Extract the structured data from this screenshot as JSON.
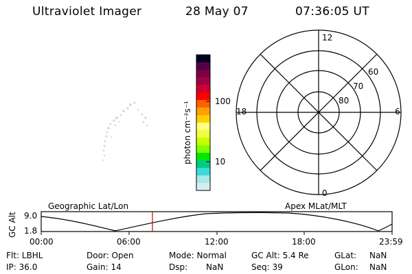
{
  "header": {
    "title": "Ultraviolet Imager",
    "date": "28 May 07",
    "time": "07:36:05 UT"
  },
  "colorbar": {
    "label": "photon cm⁻²s⁻¹",
    "tick_100": "100",
    "tick_10": "10",
    "colors": [
      "#000022",
      "#550044",
      "#7a0046",
      "#a00045",
      "#cc0033",
      "#ff0000",
      "#ff6000",
      "#ffa000",
      "#ffd000",
      "#ffff80",
      "#f0ff40",
      "#c8ff00",
      "#80ff00",
      "#00e800",
      "#00cc80",
      "#40d8d8",
      "#a8e8e8",
      "#d8eeee"
    ]
  },
  "polar_plot": {
    "mlt_top": "12",
    "mlt_left": "18",
    "mlt_right": "6",
    "mlt_bottom": "0",
    "lat_60": "60",
    "lat_70": "70",
    "lat_80": "80"
  },
  "altitude_panel": {
    "left_title": "Geographic Lat/Lon",
    "right_title": "Apex MLat/MLT",
    "ylabel": "GC Alt",
    "ytick_top": "9.0",
    "ytick_bottom": "1.8",
    "xticks": [
      "00:00",
      "06:00",
      "12:00",
      "18:00",
      "23:59"
    ],
    "current_time_color": "#cc0000"
  },
  "status": {
    "flt": "Flt: LBHL",
    "ip": "IP: 36.0",
    "door": "Door: Open",
    "gain": "Gain: 14",
    "mode": "Mode: Normal",
    "dsp": "Dsp:",
    "dsp_val": "NaN",
    "gc_alt": "GC Alt: 5.4 Re",
    "seq": "Seq: 39",
    "glat": "GLat:",
    "glat_val": "NaN",
    "glon": "GLon:",
    "glon_val": "NaN"
  }
}
